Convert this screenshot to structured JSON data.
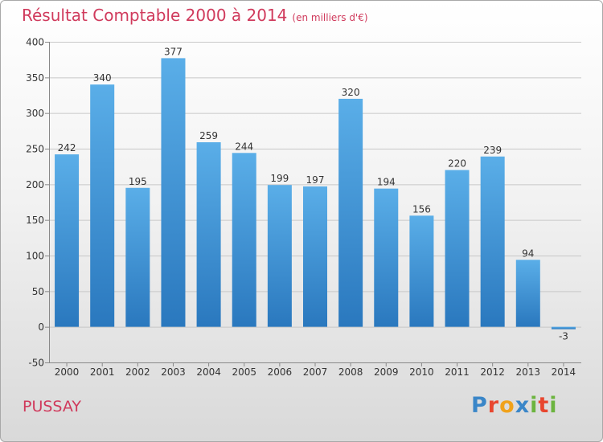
{
  "title": "Résultat Comptable 2000 à 2014",
  "subtitle": "(en milliers d'€)",
  "commune": "PUSSAY",
  "logo": {
    "letters": [
      "P",
      "r",
      "o",
      "x",
      "i",
      "t",
      "i"
    ]
  },
  "colors": {
    "title": "#d03a5c",
    "bar_top": "#5aaee8",
    "bar_bottom": "#2a78be",
    "grid": "#c8c8c8",
    "axis": "#888888"
  },
  "chart_data": {
    "type": "bar",
    "title": "Résultat Comptable 2000 à 2014",
    "subtitle": "(en milliers d'€)",
    "xlabel": "",
    "ylabel": "",
    "ylim": [
      -50,
      400
    ],
    "yticks": [
      400,
      350,
      300,
      250,
      200,
      150,
      100,
      50,
      0,
      -50
    ],
    "grid": true,
    "categories": [
      "2000",
      "2001",
      "2002",
      "2003",
      "2004",
      "2005",
      "2006",
      "2007",
      "2008",
      "2009",
      "2010",
      "2011",
      "2012",
      "2013",
      "2014"
    ],
    "values": [
      242,
      340,
      195,
      377,
      259,
      244,
      199,
      197,
      320,
      194,
      156,
      220,
      239,
      94,
      -3
    ]
  }
}
